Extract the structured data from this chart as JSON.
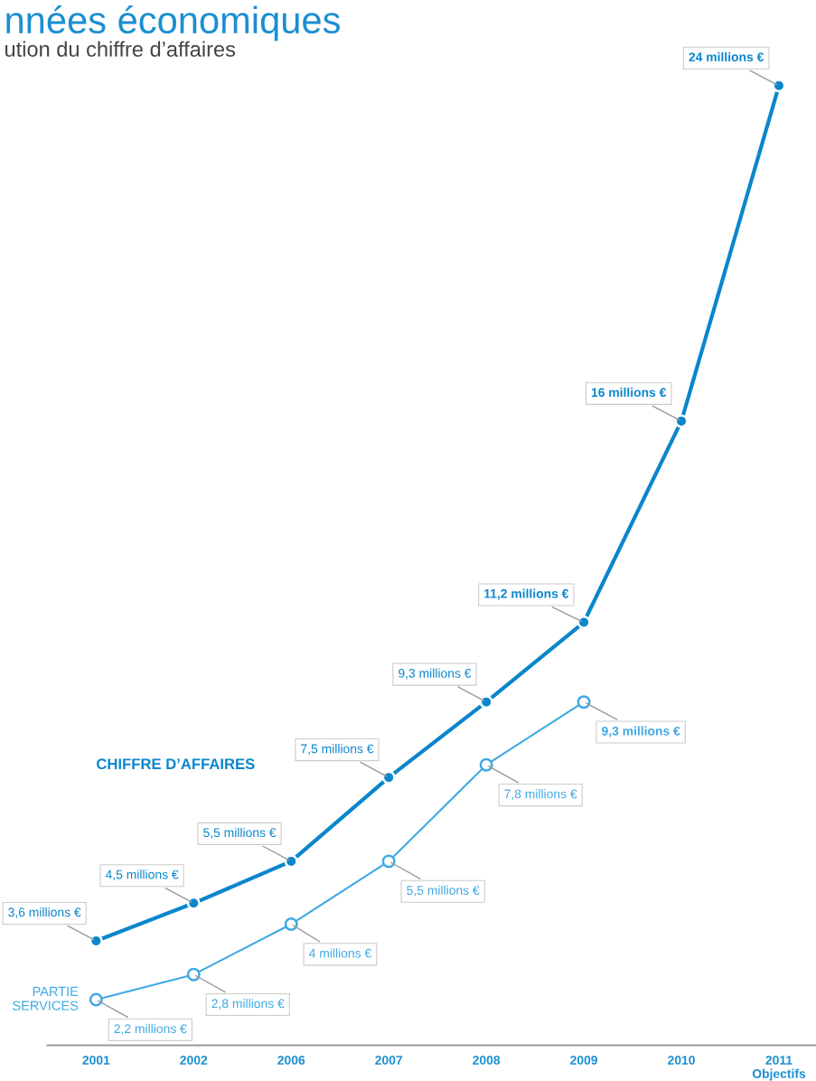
{
  "chart_data": {
    "type": "line",
    "title": "nnées économiques",
    "subtitle": "ution du chiffre d’affaires",
    "categories": [
      "2001",
      "2002",
      "2006",
      "2007",
      "2008",
      "2009",
      "2010",
      "2011\nObjectifs"
    ],
    "series": [
      {
        "name": "CHIFFRE D’AFFAIRES",
        "color": "#0a86cc",
        "values": [
          3.6,
          4.5,
          5.5,
          7.5,
          9.3,
          11.2,
          16,
          24
        ],
        "marker": "circle",
        "value_labels": [
          "3,6 millions €",
          "4,5 millions €",
          "5,5 millions €",
          "7,5 millions €",
          "9,3 millions €",
          "11,2 millions €",
          "16 millions €",
          "24 millions €"
        ]
      },
      {
        "name": "PARTIE\nSERVICES",
        "color": "#3fa9e3",
        "values": [
          2.2,
          2.8,
          4,
          5.5,
          7.8,
          9.3,
          null,
          null
        ],
        "marker": "circle",
        "value_labels": [
          "2,2 millions €",
          "2,8 millions €",
          "4 millions €",
          "5,5 millions €",
          "7,8 millions €",
          "9,3 millions €",
          null,
          null
        ]
      }
    ],
    "tick_labels": "x",
    "grid": false,
    "legend": false,
    "line_style": "solid"
  }
}
